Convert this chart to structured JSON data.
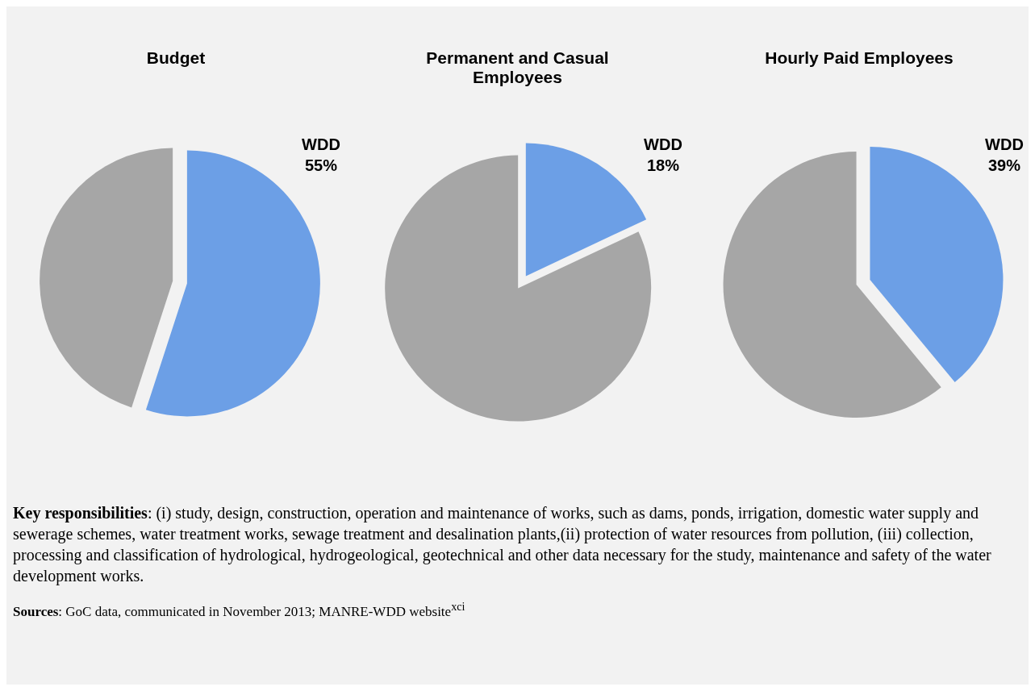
{
  "chart_data": [
    {
      "type": "pie",
      "title": "Budget",
      "categories": [
        "WDD",
        null
      ],
      "values": [
        55,
        45
      ],
      "colors": [
        "#6c9fe6",
        "#a6a6a6"
      ],
      "value_labels": [
        "55%",
        null
      ]
    },
    {
      "type": "pie",
      "title": "Permanent and Casual Employees",
      "categories": [
        "WDD",
        null
      ],
      "values": [
        18,
        82
      ],
      "colors": [
        "#6c9fe6",
        "#a6a6a6"
      ],
      "value_labels": [
        "18%",
        null
      ]
    },
    {
      "type": "pie",
      "title": "Hourly Paid Employees",
      "categories": [
        "WDD",
        null
      ],
      "values": [
        39,
        61
      ],
      "colors": [
        "#6c9fe6",
        "#a6a6a6"
      ],
      "value_labels": [
        "39%",
        null
      ]
    },
    {
      "type": "other",
      "annotations": [
        "Key responsibilities: (i) study, design, construction, operation and maintenance of works, such as dams, ponds, irrigation, domestic water supply and sewerage schemes, water treatment works, sewage treatment and desalination plants,(ii) protection of water resources from pollution, (iii) collection, processing and classification of hydrological, hydrogeological, geotechnical and other data necessary for the study, maintenance and safety of the water development works.",
        "Sources: GoC data, communicated in November 2013; MANRE-WDD website$^{xci}$"
      ]
    }
  ]
}
